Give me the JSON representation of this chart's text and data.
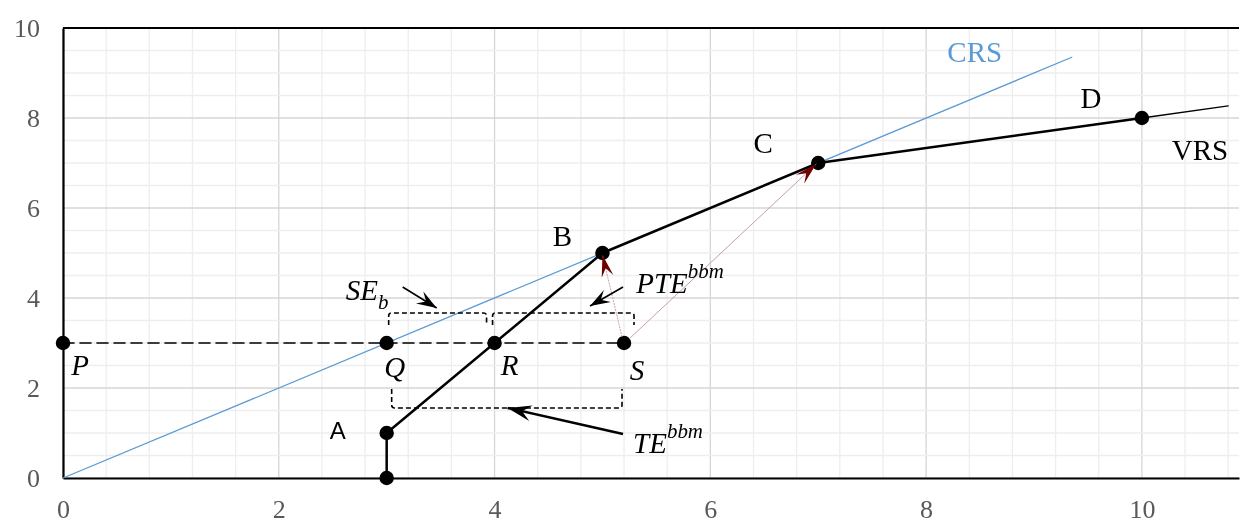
{
  "chart_data": {
    "type": "line",
    "xlim": [
      0,
      10.9
    ],
    "ylim": [
      0,
      10
    ],
    "xticks": [
      0,
      2,
      4,
      6,
      8,
      10
    ],
    "yticks": [
      0,
      2,
      4,
      6,
      8,
      10
    ],
    "grid": true,
    "marker": "circle",
    "line_style": "solid",
    "series": [
      {
        "name": "CRS",
        "color": "#5b9bd5",
        "x": [
          0,
          9.35
        ],
        "values": [
          0,
          9.35
        ],
        "marker": "none"
      },
      {
        "name": "VRS",
        "color": "#000000",
        "x": [
          3,
          3,
          5,
          7,
          10
        ],
        "values": [
          0,
          1,
          5,
          7,
          8
        ]
      },
      {
        "color": "#000000",
        "x": [
          10,
          10.8
        ],
        "values": [
          8,
          8.27
        ],
        "marker": "none"
      },
      {
        "color": "#000000",
        "x": [
          0,
          3,
          4,
          5.2
        ],
        "values": [
          3,
          3,
          3,
          3
        ],
        "line_style": "dashed"
      }
    ],
    "annotations": [
      {
        "text": "A",
        "x": 3,
        "y": 1
      },
      {
        "text": "B",
        "x": 5,
        "y": 5
      },
      {
        "text": "C",
        "x": 7,
        "y": 7
      },
      {
        "text": "D",
        "x": 10,
        "y": 8
      },
      {
        "text": "P",
        "x": 0,
        "y": 3
      },
      {
        "text": "Q",
        "x": 3,
        "y": 3
      },
      {
        "text": "R",
        "x": 4,
        "y": 3
      },
      {
        "text": "S",
        "x": 5.2,
        "y": 3
      },
      "SE$_{b}$",
      "PTE$^{bbm}$",
      "TE$^{bbm}$"
    ]
  }
}
